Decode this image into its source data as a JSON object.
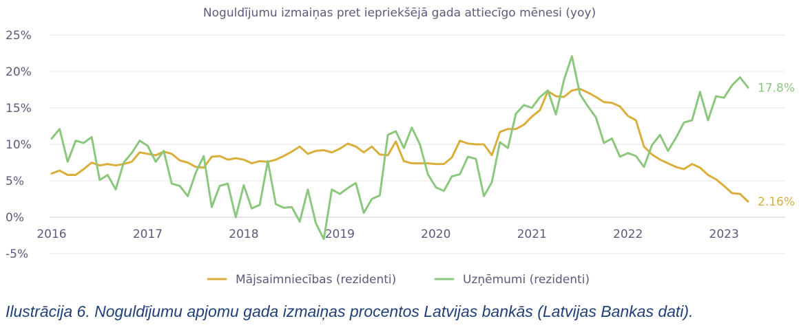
{
  "chart_data": {
    "type": "line",
    "title": "Noguldījumu izmaiņas pret iepriekšējā gada attiecīgo mēnesi (yoy)",
    "ylim": [
      -5,
      25
    ],
    "y_ticks": [
      "25%",
      "20%",
      "15%",
      "10%",
      "5%",
      "0%",
      "-5%"
    ],
    "y_tick_values": [
      25,
      20,
      15,
      10,
      5,
      0,
      -5
    ],
    "x_ticks": [
      "2016",
      "2017",
      "2018",
      "2019",
      "2020",
      "2021",
      "2022",
      "2023"
    ],
    "x_range": [
      0,
      94
    ],
    "grid": true,
    "legend_position": "bottom",
    "series": [
      {
        "name": "Mājsaimniecības (rezidenti)",
        "color": "#d9ae3a",
        "end_label": "2.16%",
        "values": [
          6.0,
          6.4,
          5.8,
          5.8,
          6.6,
          7.5,
          7.1,
          7.3,
          7.1,
          7.3,
          7.6,
          8.9,
          8.7,
          8.5,
          9.0,
          8.7,
          7.8,
          7.5,
          6.9,
          6.8,
          8.3,
          8.4,
          7.9,
          8.1,
          7.9,
          7.4,
          7.7,
          7.6,
          7.9,
          8.4,
          9.0,
          9.7,
          8.7,
          9.1,
          9.2,
          8.9,
          9.4,
          10.1,
          9.7,
          8.9,
          9.7,
          8.6,
          8.5,
          10.4,
          7.7,
          7.4,
          7.4,
          7.4,
          7.3,
          7.3,
          8.2,
          10.5,
          10.1,
          10.0,
          10.0,
          8.5,
          11.7,
          12.1,
          12.1,
          12.7,
          13.8,
          14.7,
          17.3,
          16.6,
          16.5,
          17.4,
          17.6,
          17.1,
          16.5,
          15.8,
          15.7,
          15.2,
          13.9,
          13.3,
          9.7,
          8.6,
          7.9,
          7.4,
          6.9,
          6.6,
          7.3,
          6.8,
          5.8,
          5.2,
          4.3,
          3.3,
          3.2,
          2.16
        ]
      },
      {
        "name": "Uzņēmumi (rezidenti)",
        "color": "#8cc77e",
        "end_label": "17.8%",
        "values": [
          10.8,
          12.1,
          7.6,
          10.5,
          10.2,
          11.0,
          5.1,
          5.8,
          3.8,
          7.5,
          8.8,
          10.5,
          9.8,
          7.6,
          9.1,
          4.6,
          4.3,
          2.9,
          6.1,
          8.4,
          1.4,
          4.3,
          4.6,
          0.0,
          4.4,
          1.2,
          1.7,
          7.7,
          1.8,
          1.3,
          1.4,
          -0.6,
          3.8,
          -0.8,
          -3.0,
          3.8,
          3.2,
          4.0,
          4.7,
          0.6,
          2.5,
          3.0,
          11.3,
          11.8,
          9.5,
          12.3,
          10.0,
          5.9,
          4.1,
          3.6,
          5.6,
          5.9,
          8.3,
          8.0,
          2.9,
          4.8,
          10.3,
          9.5,
          14.2,
          15.4,
          15.0,
          16.5,
          17.4,
          14.1,
          18.8,
          22.1,
          16.9,
          15.2,
          13.7,
          10.2,
          10.8,
          8.3,
          8.8,
          8.4,
          6.9,
          9.9,
          11.3,
          9.1,
          10.9,
          13.0,
          13.3,
          17.2,
          13.3,
          16.6,
          16.4,
          18.1,
          19.2,
          17.8
        ]
      }
    ]
  },
  "caption": "Ilustrācija 6. Noguldījumu apjomu gada izmaiņas procentos Latvijas bankās (Latvijas Bankas dati)."
}
